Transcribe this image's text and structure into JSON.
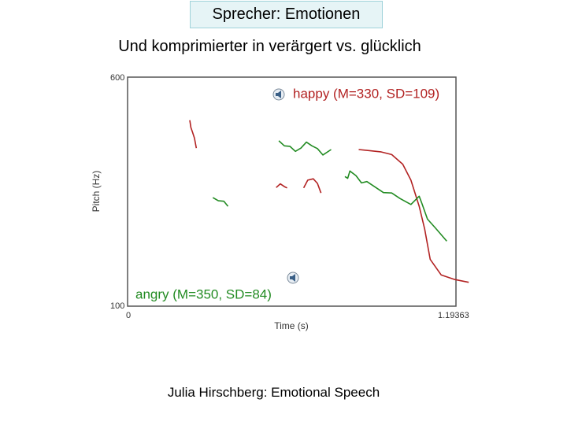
{
  "slide": {
    "title": "Sprecher: Emotionen",
    "subtitle": "Und komprimierter in verärgert vs. glücklich",
    "footer": "Julia Hirschberg: Emotional Speech"
  },
  "colors": {
    "happy": "#b22222",
    "angry": "#228b22",
    "title_box_fill": "#e6f4f6",
    "title_box_border": "#9fd3da"
  },
  "chart_data": {
    "type": "line",
    "title": "",
    "xlabel": "Time (s)",
    "ylabel": "Pitch (Hz)",
    "xlim": [
      0,
      1.19363
    ],
    "ylim": [
      100,
      600
    ],
    "x_tick_labels": [
      "0",
      "1.19363"
    ],
    "y_tick_labels": [
      "100",
      "600"
    ],
    "grid": false,
    "legend_icon": "speaker-icon",
    "series": [
      {
        "name": "happy (M=330, SD=109)",
        "color": "#b22222",
        "segments": [
          [
            [
              0.226,
              506
            ],
            [
              0.23,
              490
            ],
            [
              0.236,
              480
            ],
            [
              0.243,
              467
            ],
            [
              0.25,
              445
            ]
          ],
          [
            [
              0.54,
              359
            ],
            [
              0.555,
              367
            ],
            [
              0.57,
              361
            ],
            [
              0.58,
              358
            ]
          ],
          [
            [
              0.64,
              358
            ],
            [
              0.655,
              375
            ],
            [
              0.675,
              378
            ],
            [
              0.69,
              368
            ],
            [
              0.703,
              347
            ]
          ],
          [
            [
              0.84,
              442
            ],
            [
              0.87,
              440
            ],
            [
              0.92,
              437
            ],
            [
              0.96,
              431
            ],
            [
              1.0,
              410
            ],
            [
              1.03,
              375
            ],
            [
              1.06,
              318
            ],
            [
              1.08,
              268
            ],
            [
              1.1,
              202
            ],
            [
              1.14,
              168
            ],
            [
              1.19,
              158
            ],
            [
              1.24,
              152
            ]
          ]
        ]
      },
      {
        "name": "angry (M=350, SD=84)",
        "color": "#228b22",
        "segments": [
          [
            [
              0.55,
              461
            ],
            [
              0.57,
              450
            ],
            [
              0.59,
              449
            ],
            [
              0.61,
              438
            ],
            [
              0.63,
              445
            ],
            [
              0.65,
              458
            ],
            [
              0.67,
              450
            ],
            [
              0.69,
              444
            ],
            [
              0.71,
              430
            ],
            [
              0.74,
              442
            ]
          ],
          [
            [
              0.31,
              337
            ],
            [
              0.33,
              330
            ],
            [
              0.35,
              329
            ],
            [
              0.365,
              318
            ]
          ],
          [
            [
              0.79,
              383
            ],
            [
              0.8,
              379
            ],
            [
              0.808,
              395
            ],
            [
              0.83,
              385
            ],
            [
              0.85,
              369
            ],
            [
              0.87,
              372
            ],
            [
              0.9,
              360
            ],
            [
              0.93,
              348
            ],
            [
              0.96,
              347
            ],
            [
              0.99,
              335
            ],
            [
              1.03,
              322
            ],
            [
              1.06,
              340
            ],
            [
              1.07,
              324
            ],
            [
              1.09,
              290
            ],
            [
              1.12,
              270
            ],
            [
              1.16,
              242
            ]
          ]
        ]
      }
    ]
  }
}
